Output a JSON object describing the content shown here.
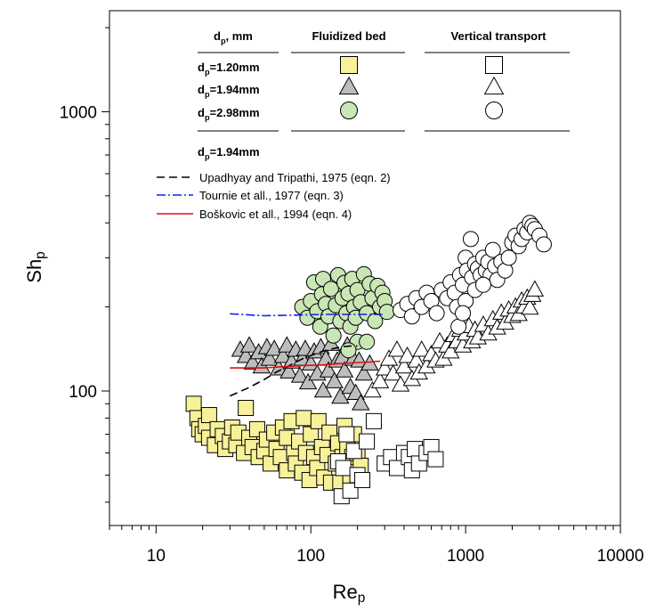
{
  "chart_data": {
    "type": "scatter",
    "x_scale": "log",
    "y_scale": "log",
    "xlim": [
      5,
      10000
    ],
    "ylim": [
      33,
      2300
    ],
    "x_ticks": [
      10,
      100,
      1000,
      10000
    ],
    "x_tick_labels": [
      "10",
      "100",
      "1000",
      "10000"
    ],
    "y_ticks": [
      100,
      1000
    ],
    "y_tick_labels": [
      "100",
      "1000"
    ],
    "xlabel": "Re",
    "xlabel_sub": "p",
    "ylabel": "Sh",
    "ylabel_sub": "p",
    "legend_table": {
      "col_header_dp": "d",
      "col_header_dp_sub": "p",
      "col_header_dp_unit": ", mm",
      "col_header_fb": "Fluidized bed",
      "col_header_vt": "Vertical transport",
      "rows": [
        {
          "label": "d",
          "sub": "p",
          "value": "=1.20mm",
          "marker": "square"
        },
        {
          "label": "d",
          "sub": "p",
          "value": "=1.94mm",
          "marker": "triangle"
        },
        {
          "label": "d",
          "sub": "p",
          "value": "=2.98mm",
          "marker": "circle"
        }
      ],
      "lines_header": {
        "label": "d",
        "sub": "p",
        "value": "=1.94mm"
      }
    },
    "colors": {
      "square_fill": "#f7f29a",
      "triangle_fill": "#bdbdbd",
      "circle_fill": "#c9e6b5",
      "upadhyay": "#000000",
      "tournie": "#1020e0",
      "boskovic": "#e01010"
    },
    "series": [
      {
        "name": "d=1.20mm Fluidized bed",
        "marker": "square",
        "filled": true,
        "points": [
          [
            17.5,
            90
          ],
          [
            18.5,
            80
          ],
          [
            19,
            73
          ],
          [
            20,
            70
          ],
          [
            21,
            75
          ],
          [
            22,
            68
          ],
          [
            22,
            82
          ],
          [
            24,
            64
          ],
          [
            25,
            73
          ],
          [
            27,
            69
          ],
          [
            28,
            62
          ],
          [
            30,
            66
          ],
          [
            31,
            74
          ],
          [
            33,
            64
          ],
          [
            34,
            71
          ],
          [
            37,
            60
          ],
          [
            38,
            87
          ],
          [
            40,
            68
          ],
          [
            42,
            63
          ],
          [
            45,
            73
          ],
          [
            46,
            58
          ],
          [
            50,
            61
          ],
          [
            52,
            67
          ],
          [
            55,
            55
          ],
          [
            58,
            71
          ],
          [
            60,
            62
          ],
          [
            64,
            58
          ],
          [
            66,
            74
          ],
          [
            70,
            52
          ],
          [
            70,
            68
          ],
          [
            75,
            78
          ],
          [
            78,
            60
          ],
          [
            80,
            55
          ],
          [
            84,
            66
          ],
          [
            88,
            51
          ],
          [
            90,
            80
          ],
          [
            93,
            60
          ],
          [
            98,
            48
          ],
          [
            100,
            70
          ],
          [
            105,
            58
          ],
          [
            110,
            53
          ],
          [
            112,
            78
          ],
          [
            118,
            63
          ],
          [
            122,
            49
          ],
          [
            128,
            59
          ],
          [
            132,
            71
          ],
          [
            135,
            47
          ],
          [
            145,
            55
          ],
          [
            150,
            65
          ],
          [
            155,
            47
          ],
          [
            160,
            58
          ],
          [
            165,
            75
          ],
          [
            172,
            62
          ],
          [
            180,
            49
          ],
          [
            185,
            58
          ],
          [
            190,
            70
          ],
          [
            200,
            60
          ],
          [
            210,
            54
          ]
        ]
      },
      {
        "name": "d=1.94mm Fluidized bed",
        "marker": "triangle",
        "filled": true,
        "points": [
          [
            35,
            140
          ],
          [
            38,
            133
          ],
          [
            40,
            145
          ],
          [
            42,
            126
          ],
          [
            46,
            137
          ],
          [
            48,
            122
          ],
          [
            52,
            143
          ],
          [
            54,
            130
          ],
          [
            58,
            141
          ],
          [
            62,
            120
          ],
          [
            66,
            133
          ],
          [
            70,
            145
          ],
          [
            72,
            117
          ],
          [
            75,
            127
          ],
          [
            80,
            140
          ],
          [
            85,
            113
          ],
          [
            88,
            130
          ],
          [
            92,
            141
          ],
          [
            96,
            107
          ],
          [
            100,
            125
          ],
          [
            105,
            138
          ],
          [
            110,
            115
          ],
          [
            116,
            143
          ],
          [
            120,
            100
          ],
          [
            125,
            130
          ],
          [
            130,
            118
          ],
          [
            135,
            147
          ],
          [
            142,
            108
          ],
          [
            148,
            128
          ],
          [
            155,
            95
          ],
          [
            160,
            132
          ],
          [
            165,
            118
          ],
          [
            172,
            145
          ],
          [
            180,
            103
          ],
          [
            188,
            130
          ],
          [
            195,
            98
          ],
          [
            205,
            128
          ],
          [
            210,
            90
          ],
          [
            220,
            115
          ],
          [
            240,
            125
          ]
        ]
      },
      {
        "name": "d=2.98mm Fluidized bed",
        "marker": "circle",
        "filled": true,
        "points": [
          [
            88,
            200
          ],
          [
            95,
            183
          ],
          [
            100,
            210
          ],
          [
            105,
            245
          ],
          [
            110,
            193
          ],
          [
            115,
            170
          ],
          [
            118,
            222
          ],
          [
            120,
            252
          ],
          [
            125,
            205
          ],
          [
            130,
            185
          ],
          [
            135,
            232
          ],
          [
            140,
            158
          ],
          [
            145,
            203
          ],
          [
            150,
            260
          ],
          [
            155,
            178
          ],
          [
            160,
            215
          ],
          [
            165,
            244
          ],
          [
            170,
            190
          ],
          [
            175,
            223
          ],
          [
            180,
            170
          ],
          [
            185,
            252
          ],
          [
            190,
            200
          ],
          [
            195,
            183
          ],
          [
            200,
            230
          ],
          [
            210,
            208
          ],
          [
            220,
            262
          ],
          [
            230,
            190
          ],
          [
            240,
            242
          ],
          [
            250,
            215
          ],
          [
            260,
            178
          ],
          [
            270,
            238
          ],
          [
            280,
            200
          ],
          [
            290,
            225
          ],
          [
            300,
            210
          ],
          [
            310,
            192
          ],
          [
            200,
            150
          ],
          [
            175,
            140
          ],
          [
            230,
            150
          ]
        ]
      },
      {
        "name": "d=1.20mm Vertical transport",
        "marker": "square",
        "filled": false,
        "points": [
          [
            150,
            56
          ],
          [
            158,
            42
          ],
          [
            162,
            53
          ],
          [
            170,
            70
          ],
          [
            180,
            44
          ],
          [
            190,
            61
          ],
          [
            200,
            50
          ],
          [
            215,
            48
          ],
          [
            230,
            66
          ],
          [
            255,
            78
          ],
          [
            300,
            55
          ],
          [
            330,
            58
          ],
          [
            360,
            53
          ],
          [
            400,
            60
          ],
          [
            430,
            58
          ],
          [
            450,
            52
          ],
          [
            470,
            62
          ],
          [
            500,
            55
          ],
          [
            560,
            60
          ],
          [
            600,
            63
          ],
          [
            640,
            57
          ]
        ]
      },
      {
        "name": "d=1.94mm Vertical transport",
        "marker": "triangle",
        "filled": false,
        "points": [
          [
            250,
            100
          ],
          [
            280,
            108
          ],
          [
            300,
            120
          ],
          [
            320,
            130
          ],
          [
            340,
            115
          ],
          [
            360,
            140
          ],
          [
            380,
            105
          ],
          [
            400,
            122
          ],
          [
            420,
            133
          ],
          [
            450,
            110
          ],
          [
            480,
            128
          ],
          [
            500,
            116
          ],
          [
            520,
            140
          ],
          [
            560,
            122
          ],
          [
            600,
            135
          ],
          [
            640,
            128
          ],
          [
            680,
            150
          ],
          [
            720,
            130
          ],
          [
            760,
            145
          ],
          [
            800,
            138
          ],
          [
            840,
            158
          ],
          [
            880,
            150
          ],
          [
            920,
            165
          ],
          [
            960,
            145
          ],
          [
            1000,
            160
          ],
          [
            1050,
            170
          ],
          [
            1100,
            150
          ],
          [
            1150,
            165
          ],
          [
            1200,
            155
          ],
          [
            1300,
            172
          ],
          [
            1400,
            160
          ],
          [
            1500,
            180
          ],
          [
            1600,
            168
          ],
          [
            1700,
            190
          ],
          [
            1800,
            175
          ],
          [
            1900,
            195
          ],
          [
            2000,
            185
          ],
          [
            2100,
            200
          ],
          [
            2200,
            188
          ],
          [
            2300,
            210
          ],
          [
            2400,
            200
          ],
          [
            2500,
            215
          ],
          [
            2600,
            198
          ],
          [
            2700,
            220
          ],
          [
            2800,
            230
          ]
        ]
      },
      {
        "name": "d=2.98mm Vertical transport",
        "marker": "circle",
        "filled": false,
        "points": [
          [
            380,
            195
          ],
          [
            420,
            205
          ],
          [
            450,
            185
          ],
          [
            480,
            215
          ],
          [
            520,
            200
          ],
          [
            560,
            225
          ],
          [
            600,
            210
          ],
          [
            650,
            190
          ],
          [
            700,
            230
          ],
          [
            760,
            215
          ],
          [
            800,
            245
          ],
          [
            850,
            225
          ],
          [
            880,
            200
          ],
          [
            920,
            260
          ],
          [
            960,
            240
          ],
          [
            1000,
            300
          ],
          [
            1020,
            270
          ],
          [
            1080,
            350
          ],
          [
            1100,
            255
          ],
          [
            1150,
            285
          ],
          [
            1200,
            275
          ],
          [
            1250,
            260
          ],
          [
            1300,
            300
          ],
          [
            1350,
            270
          ],
          [
            1400,
            290
          ],
          [
            1450,
            260
          ],
          [
            1500,
            320
          ],
          [
            1550,
            280
          ],
          [
            1600,
            250
          ],
          [
            1700,
            290
          ],
          [
            1800,
            270
          ],
          [
            1900,
            300
          ],
          [
            2000,
            340
          ],
          [
            2100,
            360
          ],
          [
            2200,
            330
          ],
          [
            2300,
            350
          ],
          [
            2400,
            380
          ],
          [
            2500,
            370
          ],
          [
            2600,
            400
          ],
          [
            2700,
            390
          ],
          [
            2800,
            380
          ],
          [
            3000,
            360
          ],
          [
            3200,
            335
          ],
          [
            1000,
            210
          ],
          [
            1150,
            230
          ],
          [
            1300,
            240
          ],
          [
            900,
            170
          ],
          [
            960,
            190
          ]
        ]
      }
    ],
    "lines": [
      {
        "name": "Upadhyay and Tripathi, 1975 (eqn. 2)",
        "style": "dashed",
        "color": "#000000",
        "points": [
          [
            30,
            96
          ],
          [
            40,
            103
          ],
          [
            50,
            110
          ],
          [
            60,
            117
          ],
          [
            70,
            122
          ],
          [
            80,
            127
          ],
          [
            90,
            131
          ],
          [
            100,
            134
          ],
          [
            120,
            139
          ],
          [
            140,
            142
          ],
          [
            160,
            144
          ],
          [
            180,
            145
          ],
          [
            200,
            145
          ]
        ]
      },
      {
        "name": "Tournie et all., 1977 (eqn. 3)",
        "style": "dashdot",
        "color": "#1020e0",
        "points": [
          [
            30,
            189
          ],
          [
            50,
            186
          ],
          [
            80,
            187
          ],
          [
            120,
            188
          ],
          [
            180,
            188
          ],
          [
            250,
            188
          ],
          [
            290,
            188
          ]
        ]
      },
      {
        "name": "Boškovic et all., 1994 (eqn. 4)",
        "style": "solid",
        "color": "#e01010",
        "points": [
          [
            30,
            121
          ],
          [
            50,
            121
          ],
          [
            80,
            123
          ],
          [
            120,
            124
          ],
          [
            180,
            126
          ],
          [
            240,
            127
          ],
          [
            280,
            128
          ]
        ]
      }
    ]
  }
}
